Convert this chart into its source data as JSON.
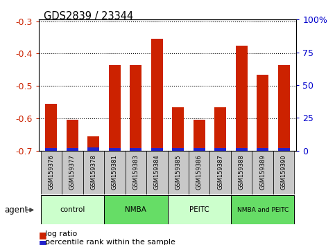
{
  "title": "GDS2839 / 23344",
  "samples": [
    "GSM159376",
    "GSM159377",
    "GSM159378",
    "GSM159381",
    "GSM159383",
    "GSM159384",
    "GSM159385",
    "GSM159386",
    "GSM159387",
    "GSM159388",
    "GSM159389",
    "GSM159390"
  ],
  "log_ratio": [
    -0.555,
    -0.605,
    -0.655,
    -0.435,
    -0.435,
    -0.355,
    -0.565,
    -0.605,
    -0.565,
    -0.375,
    -0.465,
    -0.435
  ],
  "percentile_abs": [
    0.008,
    0.009,
    0.01,
    0.009,
    0.008,
    0.008,
    0.009,
    0.008,
    0.008,
    0.009,
    0.008,
    0.008
  ],
  "bar_bottom": -0.7,
  "ylim": [
    -0.7,
    -0.295
  ],
  "yticks": [
    -0.7,
    -0.6,
    -0.5,
    -0.4,
    -0.3
  ],
  "right_yticks": [
    0,
    25,
    50,
    75,
    100
  ],
  "right_ylim": [
    0,
    100
  ],
  "groups": [
    {
      "label": "control",
      "start": 0,
      "end": 3,
      "color": "#ccffcc"
    },
    {
      "label": "NMBA",
      "start": 3,
      "end": 6,
      "color": "#66dd66"
    },
    {
      "label": "PEITC",
      "start": 6,
      "end": 9,
      "color": "#ccffcc"
    },
    {
      "label": "NMBA and PEITC",
      "start": 9,
      "end": 12,
      "color": "#66dd66"
    }
  ],
  "bar_color_red": "#cc2200",
  "bar_color_blue": "#2222cc",
  "left_tick_color": "#cc2200",
  "right_tick_color": "#0000cc",
  "grid_color": "#000000",
  "bar_width": 0.55,
  "agent_label": "agent"
}
